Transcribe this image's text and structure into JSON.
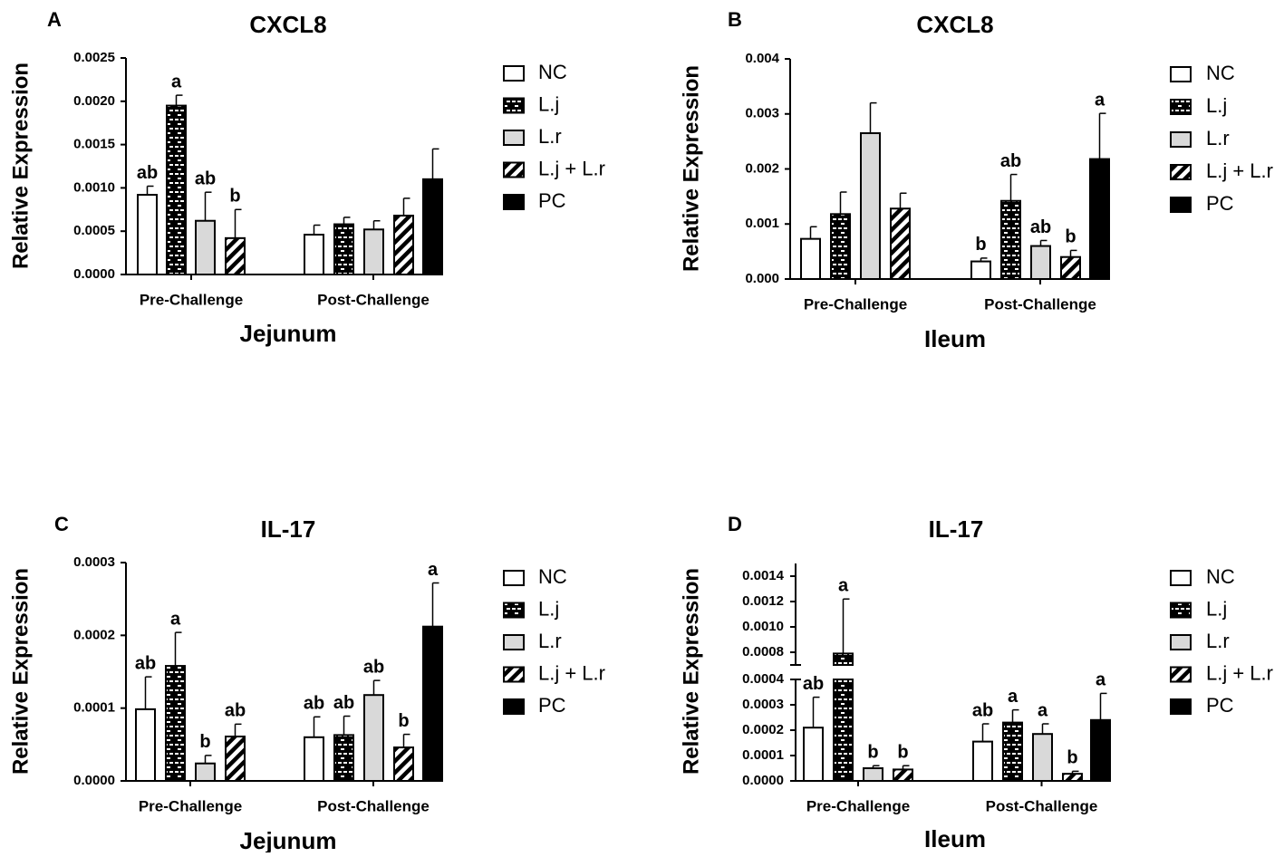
{
  "legend": [
    {
      "name": "NC",
      "pattern": "white"
    },
    {
      "name": "L.j",
      "pattern": "brick"
    },
    {
      "name": "L.r",
      "pattern": "gray"
    },
    {
      "name": "L.j + L.r",
      "pattern": "hatch"
    },
    {
      "name": "PC",
      "pattern": "black"
    }
  ],
  "colors": {
    "gray_fill": "#d9d9d9",
    "black": "#000000",
    "white": "#ffffff"
  },
  "chart_data": [
    {
      "panel": "A",
      "type": "bar",
      "title": "CXCL8",
      "ylabel": "Relative Expression",
      "xlabel": "Jejunum",
      "categories": [
        "Pre-Challenge",
        "Post-Challenge"
      ],
      "ylim": [
        0,
        0.0025
      ],
      "yticks": [
        "0.0000",
        "0.0005",
        "0.0010",
        "0.0015",
        "0.0020",
        "0.0025"
      ],
      "series": [
        {
          "name": "NC",
          "values": [
            0.00092,
            0.00046
          ],
          "errors": [
            0.0001,
            0.00011
          ],
          "labels": [
            "ab",
            ""
          ]
        },
        {
          "name": "L.j",
          "values": [
            0.00195,
            0.00058
          ],
          "errors": [
            0.00012,
            8e-05
          ],
          "labels": [
            "a",
            ""
          ]
        },
        {
          "name": "L.r",
          "values": [
            0.00062,
            0.00052
          ],
          "errors": [
            0.00033,
            0.0001
          ],
          "labels": [
            "ab",
            ""
          ]
        },
        {
          "name": "L.j + L.r",
          "values": [
            0.00042,
            0.00068
          ],
          "errors": [
            0.00033,
            0.0002
          ],
          "labels": [
            "b",
            ""
          ]
        },
        {
          "name": "PC",
          "values": [
            null,
            0.0011
          ],
          "errors": [
            null,
            0.00035
          ],
          "labels": [
            "",
            ""
          ]
        }
      ]
    },
    {
      "panel": "B",
      "type": "bar",
      "title": "CXCL8",
      "ylabel": "Relative Expression",
      "xlabel": "Ileum",
      "categories": [
        "Pre-Challenge",
        "Post-Challenge"
      ],
      "ylim": [
        0,
        0.004
      ],
      "yticks": [
        "0.000",
        "0.001",
        "0.002",
        "0.003",
        "0.004"
      ],
      "series": [
        {
          "name": "NC",
          "values": [
            0.00073,
            0.00032
          ],
          "errors": [
            0.00022,
            6e-05
          ],
          "labels": [
            "",
            "b"
          ]
        },
        {
          "name": "L.j",
          "values": [
            0.00118,
            0.00142
          ],
          "errors": [
            0.0004,
            0.00048
          ],
          "labels": [
            "",
            "ab"
          ]
        },
        {
          "name": "L.r",
          "values": [
            0.00265,
            0.0006
          ],
          "errors": [
            0.00055,
            0.0001
          ],
          "labels": [
            "",
            "ab"
          ]
        },
        {
          "name": "L.j + L.r",
          "values": [
            0.00128,
            0.0004
          ],
          "errors": [
            0.00028,
            0.00012
          ],
          "labels": [
            "",
            "b"
          ]
        },
        {
          "name": "PC",
          "values": [
            null,
            0.00218
          ],
          "errors": [
            null,
            0.00083
          ],
          "labels": [
            "",
            "a"
          ]
        }
      ]
    },
    {
      "panel": "C",
      "type": "bar",
      "title": "IL-17",
      "ylabel": "Relative Expression",
      "xlabel": "Jejunum",
      "categories": [
        "Pre-Challenge",
        "Post-Challenge"
      ],
      "ylim": [
        0,
        0.0003
      ],
      "yticks": [
        "0.0000",
        "0.0001",
        "0.0002",
        "0.0003"
      ],
      "series": [
        {
          "name": "NC",
          "values": [
            9.85e-05,
            6e-05
          ],
          "errors": [
            4.45e-05,
            2.8e-05
          ],
          "labels": [
            "ab",
            "ab"
          ]
        },
        {
          "name": "L.j",
          "values": [
            0.000158,
            6.3e-05
          ],
          "errors": [
            4.6e-05,
            2.6e-05
          ],
          "labels": [
            "a",
            "ab"
          ]
        },
        {
          "name": "L.r",
          "values": [
            2.4e-05,
            0.000118
          ],
          "errors": [
            1.1e-05,
            2e-05
          ],
          "labels": [
            "b",
            "ab"
          ]
        },
        {
          "name": "L.j + L.r",
          "values": [
            6.1e-05,
            4.6e-05
          ],
          "errors": [
            1.7e-05,
            1.8e-05
          ],
          "labels": [
            "ab",
            "b"
          ]
        },
        {
          "name": "PC",
          "values": [
            null,
            0.000212
          ],
          "errors": [
            null,
            6e-05
          ],
          "labels": [
            "",
            "a"
          ]
        }
      ]
    },
    {
      "panel": "D",
      "type": "bar",
      "title": "IL-17",
      "ylabel": "Relative Expression",
      "xlabel": "Ileum",
      "categories": [
        "Pre-Challenge",
        "Post-Challenge"
      ],
      "ylim": [
        0,
        0.0015
      ],
      "axis_break": [
        0.0004,
        0.0007
      ],
      "yticks_lower": [
        "0.0000",
        "0.0001",
        "0.0002",
        "0.0003",
        "0.0004"
      ],
      "yticks_upper": [
        "0.0008",
        "0.0010",
        "0.0012",
        "0.0014"
      ],
      "series": [
        {
          "name": "NC",
          "values": [
            0.00021,
            0.000155
          ],
          "errors": [
            0.00012,
            7e-05
          ],
          "labels": [
            "ab",
            "ab"
          ]
        },
        {
          "name": "L.j",
          "values": [
            0.00079,
            0.00023
          ],
          "errors": [
            0.00043,
            5e-05
          ],
          "labels": [
            "a",
            "a"
          ]
        },
        {
          "name": "L.r",
          "values": [
            5e-05,
            0.000185
          ],
          "errors": [
            1e-05,
            4e-05
          ],
          "labels": [
            "b",
            "a"
          ]
        },
        {
          "name": "L.j + L.r",
          "values": [
            4.5e-05,
            2.8e-05
          ],
          "errors": [
            1.5e-05,
            1e-05
          ],
          "labels": [
            "b",
            "b"
          ]
        },
        {
          "name": "PC",
          "values": [
            null,
            0.00024
          ],
          "errors": [
            null,
            0.000105
          ],
          "labels": [
            "",
            "a"
          ]
        }
      ]
    }
  ]
}
